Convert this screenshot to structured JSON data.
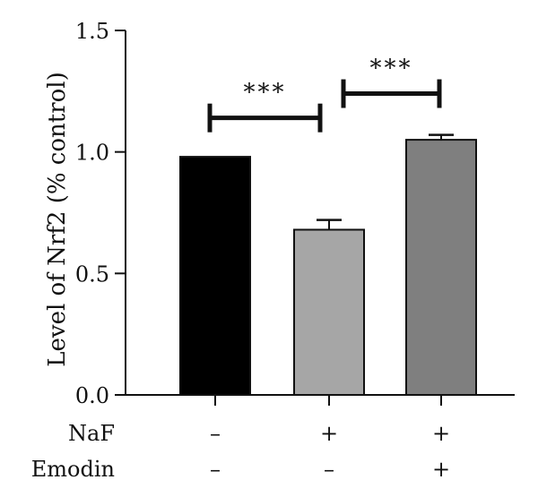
{
  "chart_data": {
    "type": "bar",
    "ylabel": "Level of Nrf2 (% control)",
    "ylim": [
      0,
      1.5
    ],
    "yticks": [
      0.0,
      0.5,
      1.0,
      1.5
    ],
    "ytick_labels": [
      "0.0",
      "0.5",
      "1.0",
      "1.5"
    ],
    "categories": [
      "NaF − / Emodin −",
      "NaF + / Emodin −",
      "NaF + / Emodin +"
    ],
    "values": [
      0.98,
      0.68,
      1.05
    ],
    "error": [
      0.0,
      0.04,
      0.02
    ],
    "bar_colors": [
      "#000000",
      "#a6a6a6",
      "#7f7f7f"
    ],
    "treatments": [
      {
        "label": "NaF",
        "values": [
          "–",
          "+",
          "+"
        ]
      },
      {
        "label": "Emodin",
        "values": [
          "–",
          "–",
          "+"
        ]
      }
    ],
    "significance": [
      {
        "from": 0,
        "to": 1,
        "label": "***",
        "y": 1.14
      },
      {
        "from": 1,
        "to": 2,
        "label": "***",
        "y": 1.24
      }
    ],
    "grid": false,
    "legend": "none"
  }
}
